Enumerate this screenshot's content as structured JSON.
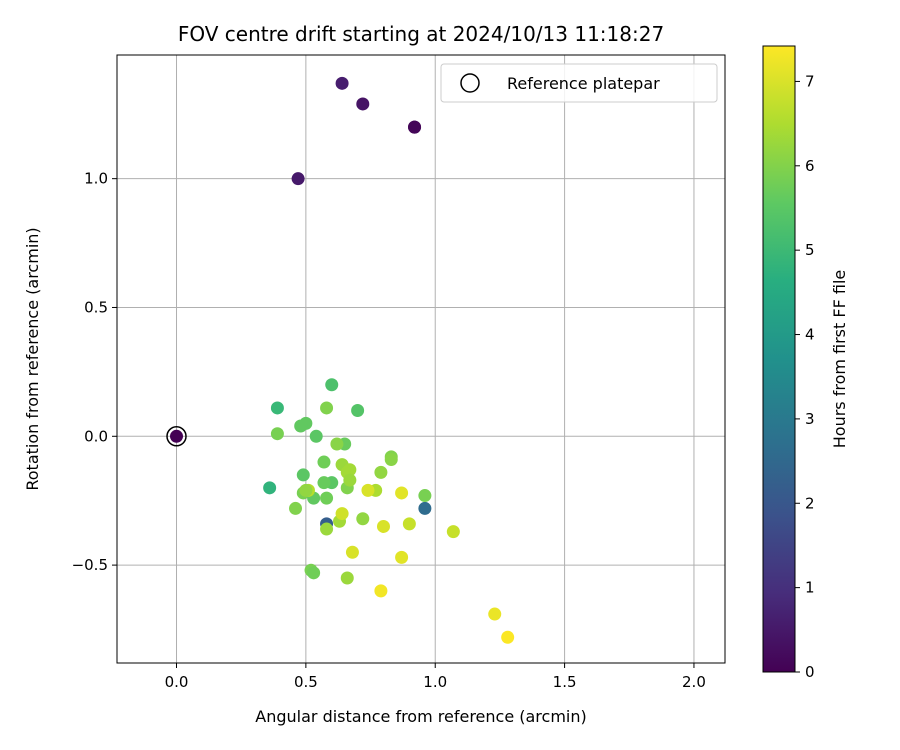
{
  "chart_data": {
    "type": "scatter",
    "title": "FOV centre drift starting at 2024/10/13 11:18:27",
    "xlabel": "Angular distance from reference (arcmin)",
    "ylabel": "Rotation from reference (arcmin)",
    "xlim": [
      -0.23,
      2.12
    ],
    "ylim": [
      -0.88,
      1.48
    ],
    "xticks": [
      0.0,
      0.5,
      1.0,
      1.5,
      2.0
    ],
    "xtick_labels": [
      "0.0",
      "0.5",
      "1.0",
      "1.5",
      "2.0"
    ],
    "yticks": [
      -0.5,
      0.0,
      0.5,
      1.0
    ],
    "ytick_labels": [
      "−0.5",
      "0.0",
      "0.5",
      "1.0"
    ],
    "grid": true,
    "colormap": "viridis",
    "colorbar": {
      "label": "Hours from first FF file",
      "range": [
        0,
        7.42
      ],
      "ticks": [
        0,
        1,
        2,
        3,
        4,
        5,
        6,
        7
      ],
      "tick_labels": [
        "0",
        "1",
        "2",
        "3",
        "4",
        "5",
        "6",
        "7"
      ]
    },
    "legend": {
      "position": "upper right",
      "entries": [
        {
          "label": "Reference platepar",
          "marker": "open-circle"
        }
      ]
    },
    "reference_point": {
      "x": 0.0,
      "y": 0.0
    },
    "points": [
      {
        "x": 0.0,
        "y": 0.0,
        "c": 0.0
      },
      {
        "x": 0.47,
        "y": 1.0,
        "c": 0.5
      },
      {
        "x": 0.64,
        "y": 1.37,
        "c": 0.6
      },
      {
        "x": 0.72,
        "y": 1.29,
        "c": 0.4
      },
      {
        "x": 0.92,
        "y": 1.2,
        "c": 0.05
      },
      {
        "x": 0.92,
        "y": 1.2,
        "c": 0.1
      },
      {
        "x": 0.58,
        "y": -0.34,
        "c": 2.2
      },
      {
        "x": 0.96,
        "y": -0.28,
        "c": 2.6
      },
      {
        "x": 0.36,
        "y": -0.2,
        "c": 4.8
      },
      {
        "x": 0.39,
        "y": 0.11,
        "c": 5.0
      },
      {
        "x": 0.6,
        "y": 0.2,
        "c": 5.3
      },
      {
        "x": 0.7,
        "y": 0.1,
        "c": 5.4
      },
      {
        "x": 0.5,
        "y": 0.05,
        "c": 5.6
      },
      {
        "x": 0.48,
        "y": 0.04,
        "c": 5.6
      },
      {
        "x": 0.54,
        "y": 0.0,
        "c": 5.5
      },
      {
        "x": 0.65,
        "y": -0.03,
        "c": 5.7
      },
      {
        "x": 0.39,
        "y": 0.01,
        "c": 5.9
      },
      {
        "x": 0.58,
        "y": 0.11,
        "c": 6.0
      },
      {
        "x": 0.49,
        "y": -0.15,
        "c": 5.5
      },
      {
        "x": 0.57,
        "y": -0.1,
        "c": 5.8
      },
      {
        "x": 0.6,
        "y": -0.18,
        "c": 5.5
      },
      {
        "x": 0.57,
        "y": -0.18,
        "c": 5.7
      },
      {
        "x": 0.49,
        "y": -0.22,
        "c": 5.9
      },
      {
        "x": 0.53,
        "y": -0.24,
        "c": 5.6
      },
      {
        "x": 0.58,
        "y": -0.24,
        "c": 5.8
      },
      {
        "x": 0.46,
        "y": -0.28,
        "c": 6.0
      },
      {
        "x": 0.66,
        "y": -0.2,
        "c": 6.0
      },
      {
        "x": 0.62,
        "y": -0.03,
        "c": 6.1
      },
      {
        "x": 0.64,
        "y": -0.11,
        "c": 6.3
      },
      {
        "x": 0.66,
        "y": -0.14,
        "c": 6.4
      },
      {
        "x": 0.67,
        "y": -0.13,
        "c": 6.4
      },
      {
        "x": 0.67,
        "y": -0.17,
        "c": 6.3
      },
      {
        "x": 0.79,
        "y": -0.14,
        "c": 6.2
      },
      {
        "x": 0.83,
        "y": -0.08,
        "c": 6.0
      },
      {
        "x": 0.83,
        "y": -0.09,
        "c": 6.1
      },
      {
        "x": 0.77,
        "y": -0.21,
        "c": 6.5
      },
      {
        "x": 0.74,
        "y": -0.21,
        "c": 7.0
      },
      {
        "x": 0.96,
        "y": -0.23,
        "c": 5.9
      },
      {
        "x": 0.87,
        "y": -0.22,
        "c": 7.1
      },
      {
        "x": 0.51,
        "y": -0.21,
        "c": 6.6
      },
      {
        "x": 0.5,
        "y": -0.21,
        "c": 6.2
      },
      {
        "x": 0.63,
        "y": -0.33,
        "c": 6.4
      },
      {
        "x": 0.72,
        "y": -0.32,
        "c": 6.2
      },
      {
        "x": 0.64,
        "y": -0.3,
        "c": 6.9
      },
      {
        "x": 0.58,
        "y": -0.36,
        "c": 6.3
      },
      {
        "x": 0.8,
        "y": -0.35,
        "c": 7.0
      },
      {
        "x": 0.9,
        "y": -0.34,
        "c": 6.8
      },
      {
        "x": 1.07,
        "y": -0.37,
        "c": 6.8
      },
      {
        "x": 0.68,
        "y": -0.45,
        "c": 7.0
      },
      {
        "x": 0.87,
        "y": -0.47,
        "c": 7.1
      },
      {
        "x": 0.52,
        "y": -0.52,
        "c": 5.9
      },
      {
        "x": 0.53,
        "y": -0.53,
        "c": 5.8
      },
      {
        "x": 0.66,
        "y": -0.55,
        "c": 6.3
      },
      {
        "x": 0.79,
        "y": -0.6,
        "c": 7.3
      },
      {
        "x": 1.23,
        "y": -0.69,
        "c": 7.2
      },
      {
        "x": 1.28,
        "y": -0.78,
        "c": 7.4
      }
    ]
  }
}
